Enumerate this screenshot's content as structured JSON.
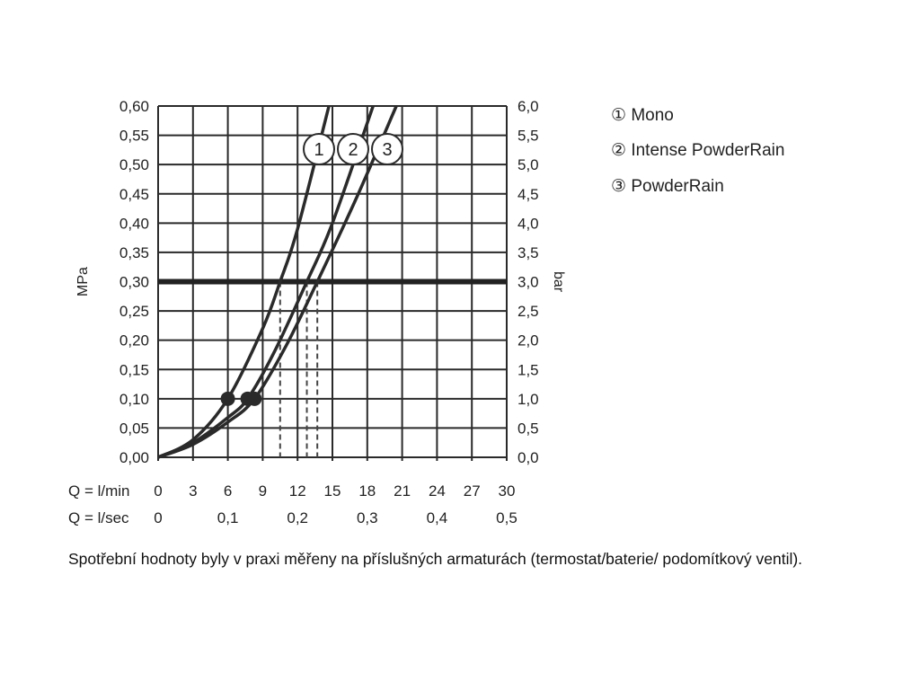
{
  "chart_data": {
    "type": "line",
    "ylabel_left": "MPa",
    "ylabel_right": "bar",
    "xlim": [
      0,
      30
    ],
    "ylim": [
      0,
      0.6
    ],
    "grid": true,
    "y_ticks_left": [
      "0,00",
      "0,05",
      "0,10",
      "0,15",
      "0,20",
      "0,25",
      "0,30",
      "0,35",
      "0,40",
      "0,45",
      "0,50",
      "0,55",
      "0,60"
    ],
    "y_ticks_right": [
      "0,0",
      "0,5",
      "1,0",
      "1,5",
      "2,0",
      "2,5",
      "3,0",
      "3,5",
      "4,0",
      "4,5",
      "5,0",
      "5,5",
      "6,0"
    ],
    "x_row1_label": "Q = l/min",
    "x_ticks_lmin": [
      "0",
      "3",
      "6",
      "9",
      "12",
      "15",
      "18",
      "21",
      "24",
      "27",
      "30"
    ],
    "x_row2_label": "Q = l/sec",
    "x_ticks_lsec": [
      {
        "label": "0",
        "at": 0
      },
      {
        "label": "0,1",
        "at": 6
      },
      {
        "label": "0,2",
        "at": 12
      },
      {
        "label": "0,3",
        "at": 18
      },
      {
        "label": "0,4",
        "at": 24
      },
      {
        "label": "0,5",
        "at": 30
      }
    ],
    "reference_pressure": 0.3,
    "series": [
      {
        "name": "Mono",
        "marker": "1",
        "points": [
          [
            0,
            0
          ],
          [
            3,
            0.03
          ],
          [
            6,
            0.1
          ],
          [
            9,
            0.22
          ],
          [
            10.5,
            0.3
          ],
          [
            12,
            0.39
          ],
          [
            14.7,
            0.6
          ]
        ],
        "dot": [
          6,
          0.1
        ],
        "flow_at_ref": 10.5
      },
      {
        "name": "Intense PowderRain",
        "marker": "2",
        "points": [
          [
            0,
            0
          ],
          [
            3,
            0.025
          ],
          [
            6,
            0.068
          ],
          [
            7.7,
            0.1
          ],
          [
            10,
            0.18
          ],
          [
            12.8,
            0.3
          ],
          [
            15,
            0.4
          ],
          [
            18.5,
            0.6
          ]
        ],
        "dot": [
          7.7,
          0.1
        ],
        "flow_at_ref": 12.8
      },
      {
        "name": "PowderRain",
        "marker": "3",
        "points": [
          [
            0,
            0
          ],
          [
            3,
            0.022
          ],
          [
            6,
            0.06
          ],
          [
            8.3,
            0.1
          ],
          [
            11,
            0.19
          ],
          [
            13.7,
            0.3
          ],
          [
            17,
            0.44
          ],
          [
            20.5,
            0.6
          ]
        ],
        "dot": [
          8.3,
          0.1
        ],
        "flow_at_ref": 13.7
      }
    ],
    "legend": [
      {
        "symbol": "①",
        "label": "Mono"
      },
      {
        "symbol": "②",
        "label": "Intense PowderRain"
      },
      {
        "symbol": "③",
        "label": "PowderRain"
      }
    ],
    "legend_position": "right"
  },
  "caption": "Spotřební hodnoty byly v praxi měřeny na příslušných armaturách (termostat/baterie/ podomítkový ventil)."
}
